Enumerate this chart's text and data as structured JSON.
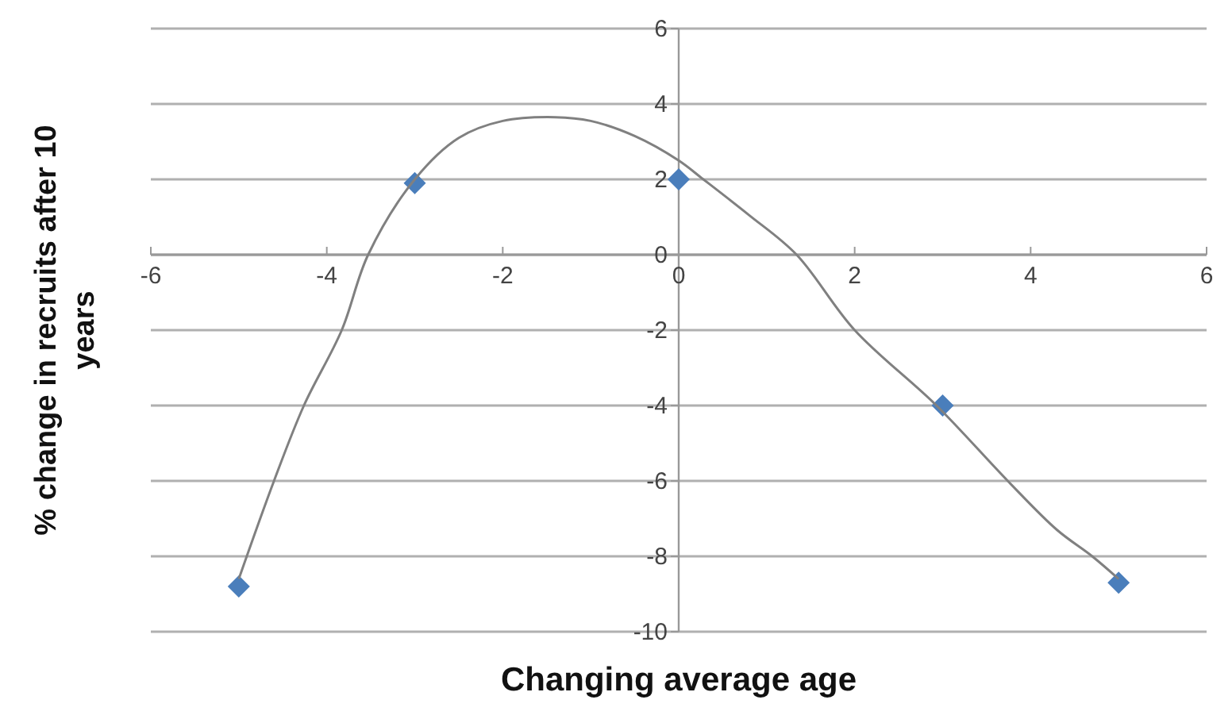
{
  "chart_data": {
    "type": "scatter",
    "xlabel": "Changing average age",
    "ylabel": "% change in recruits after 10 years",
    "xlim": [
      -6,
      6
    ],
    "xticks": [
      -6,
      -4,
      -2,
      0,
      2,
      4,
      6
    ],
    "ylim": [
      -10,
      6
    ],
    "yticks": [
      -10,
      -8,
      -6,
      -4,
      -2,
      0,
      2,
      4,
      6
    ],
    "grid": "y",
    "marker": "diamond",
    "series": [
      {
        "color": "#4a7ebb",
        "x": [
          -5,
          -3,
          0,
          3,
          5
        ],
        "values": [
          -8.8,
          1.9,
          2,
          -4,
          -8.7
        ]
      },
      {
        "type": "line",
        "color": "#808080",
        "line_style": "solid",
        "marker": "none",
        "x": [
          -5,
          -4.6,
          -4.26,
          -3.83,
          -3.53,
          -3,
          -2.5,
          -2,
          -1.4,
          -1,
          -0.5,
          0,
          0.28,
          0.8,
          1.34,
          2,
          2.93,
          3.74,
          4.3,
          4.7,
          5
        ],
        "values": [
          -8.6,
          -6,
          -4,
          -2,
          0,
          2,
          3.1,
          3.55,
          3.65,
          3.55,
          3.15,
          2.5,
          2,
          1.05,
          0,
          -2,
          -4,
          -6,
          -7.3,
          -8,
          -8.6
        ]
      }
    ]
  }
}
